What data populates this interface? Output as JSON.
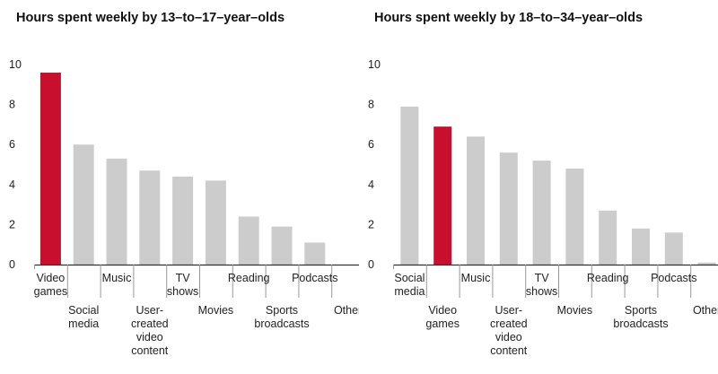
{
  "colors": {
    "highlight": "#c8102e",
    "bar": "#cccccc",
    "axis": "#333333",
    "separator": "#999999",
    "text": "#222222"
  },
  "chart_data": [
    {
      "type": "bar",
      "title": "Hours spent weekly by 13–to–17–year–olds",
      "xlabel": "",
      "ylabel": "",
      "ylim": [
        0,
        10
      ],
      "yticks": [
        "0",
        "2",
        "4",
        "6",
        "8",
        "10"
      ],
      "grid": false,
      "highlight_category_index": 0,
      "categories": [
        [
          "Video",
          "games"
        ],
        [
          "Social",
          "media"
        ],
        [
          "Music"
        ],
        [
          "User-",
          "created",
          "video",
          "content"
        ],
        [
          "TV",
          "shows"
        ],
        [
          "Movies"
        ],
        [
          "Reading"
        ],
        [
          "Sports",
          "broadcasts"
        ],
        [
          "Podcasts"
        ],
        [
          "Other"
        ]
      ],
      "values": [
        9.6,
        6.0,
        5.3,
        4.7,
        4.4,
        4.2,
        2.4,
        1.9,
        1.1,
        0.0
      ]
    },
    {
      "type": "bar",
      "title": "Hours spent weekly by 18–to–34–year–olds",
      "xlabel": "",
      "ylabel": "",
      "ylim": [
        0,
        10
      ],
      "yticks": [
        "0",
        "2",
        "4",
        "6",
        "8",
        "10"
      ],
      "grid": false,
      "highlight_category_index": 1,
      "categories": [
        [
          "Social",
          "media"
        ],
        [
          "Video",
          "games"
        ],
        [
          "Music"
        ],
        [
          "User-",
          "created",
          "video",
          "content"
        ],
        [
          "TV",
          "shows"
        ],
        [
          "Movies"
        ],
        [
          "Reading"
        ],
        [
          "Sports",
          "broadcasts"
        ],
        [
          "Podcasts"
        ],
        [
          "Other"
        ]
      ],
      "values": [
        7.9,
        6.9,
        6.4,
        5.6,
        5.2,
        4.8,
        2.7,
        1.8,
        1.6,
        0.1
      ]
    }
  ]
}
